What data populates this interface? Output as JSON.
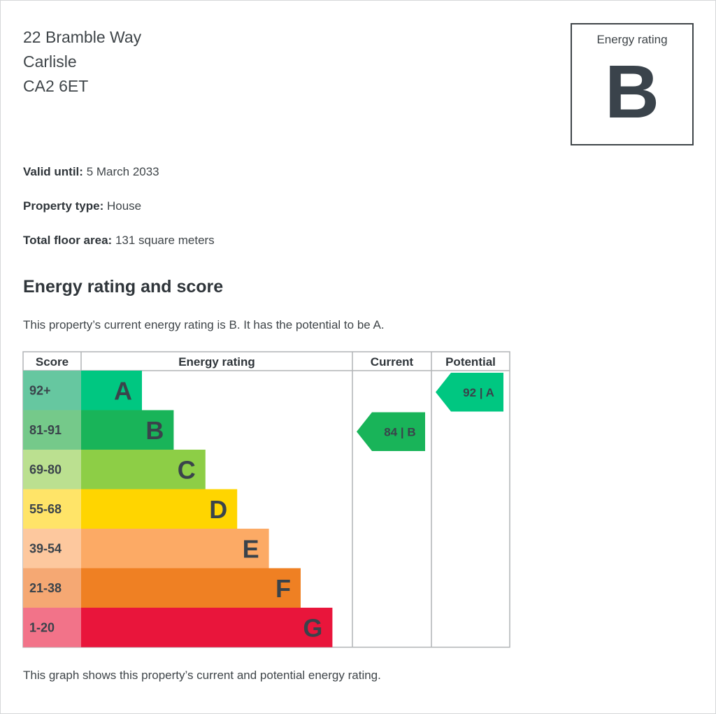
{
  "address": {
    "line1": "22 Bramble Way",
    "line2": "Carlisle",
    "line3": "CA2 6ET"
  },
  "rating_box": {
    "label": "Energy rating",
    "letter": "B"
  },
  "facts": {
    "valid_until_label": "Valid until:",
    "valid_until_value": "5 March 2033",
    "property_type_label": "Property type:",
    "property_type_value": "House",
    "floor_area_label": "Total floor area:",
    "floor_area_value": "131 square meters"
  },
  "section": {
    "heading": "Energy rating and score",
    "summary": "This property’s current energy rating is B. It has the potential to be A.",
    "caption": "This graph shows this property’s current and potential energy rating."
  },
  "chart_data": {
    "type": "table",
    "columns": [
      "Score",
      "Energy rating",
      "Current",
      "Potential"
    ],
    "bands": [
      {
        "score": "92+",
        "letter": "A",
        "color": "#008054",
        "score_color": "#66b398"
      },
      {
        "score": "81-91",
        "letter": "B",
        "color": "#19b459",
        "score_color": "#75d29b"
      },
      {
        "score": "69-80",
        "letter": "C",
        "color": "#8dce46",
        "score_color": "#bbe290"
      },
      {
        "score": "55-68",
        "letter": "D",
        "color": "#ffd500",
        "score_color": "#ffe666"
      },
      {
        "score": "39-54",
        "letter": "E",
        "color": "#fcaa65",
        "score_color": "#fdcca3"
      },
      {
        "score": "21-38",
        "letter": "F",
        "color": "#ef8023",
        "score_color": "#f5b37b"
      },
      {
        "score": "1-20",
        "letter": "G",
        "color": "#e9153b",
        "score_color": "#f27389"
      }
    ],
    "current": {
      "value": 84,
      "letter": "B",
      "label": "84 | B",
      "color": "#19b459"
    },
    "potential": {
      "value": 92,
      "letter": "A",
      "label": "92 | A",
      "color": "#00c781"
    }
  },
  "colors": {
    "band_a_fill": "#00c781",
    "text_dark": "#3f4549",
    "grid": "#b1b4b6"
  }
}
